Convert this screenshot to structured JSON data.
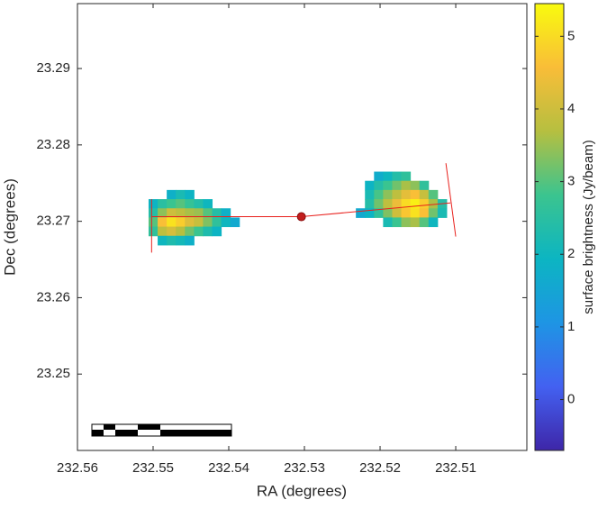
{
  "chart_data": {
    "type": "image",
    "xlabel": "RA (degrees)",
    "ylabel": "Dec (degrees)",
    "colorbar_label": "surface brightness (Jy/beam)",
    "xlim": [
      232.56,
      232.5006
    ],
    "ylim": [
      23.24,
      23.2985
    ],
    "xticks": [
      232.56,
      232.55,
      232.54,
      232.53,
      232.52,
      232.51
    ],
    "yticks": [
      23.25,
      23.26,
      23.27,
      23.28,
      23.29
    ],
    "clim": [
      -0.7,
      5.45
    ],
    "cticks": [
      0,
      1,
      2,
      3,
      4,
      5
    ],
    "colormap": [
      "#3e26a8",
      "#4361f1",
      "#1e95e4",
      "#0cb5c2",
      "#3bc48f",
      "#b6bf40",
      "#f9bd38",
      "#f9fb0e"
    ],
    "line_color": "#e8201c",
    "images": [
      {
        "ra": [
          232.55,
          232.5488,
          232.5476,
          232.5464,
          232.5452,
          232.544,
          232.5428,
          232.5416,
          232.5404,
          232.5392
        ],
        "dec": [
          23.2735,
          23.2723,
          23.2711,
          23.2699,
          23.2687,
          23.2675
        ],
        "z": [
          [
            null,
            null,
            1.8,
            2.2,
            1.9,
            null,
            null,
            null,
            null,
            null
          ],
          [
            1.9,
            2.5,
            2.8,
            3.0,
            2.7,
            2.4,
            2.0,
            null,
            null,
            null
          ],
          [
            2.4,
            3.4,
            4.0,
            3.8,
            3.6,
            3.5,
            3.0,
            2.4,
            1.8,
            null
          ],
          [
            3.0,
            4.6,
            5.1,
            4.8,
            4.2,
            3.9,
            3.3,
            2.6,
            2.0,
            1.6
          ],
          [
            2.6,
            3.8,
            4.1,
            3.7,
            3.2,
            2.8,
            2.3,
            1.9,
            null,
            null
          ],
          [
            null,
            2.0,
            2.3,
            2.1,
            1.8,
            null,
            null,
            null,
            null,
            null
          ]
        ]
      },
      {
        "ra": [
          232.5226,
          232.5214,
          232.5202,
          232.519,
          232.5178,
          232.5166,
          232.5154,
          232.5142,
          232.513,
          232.5118
        ],
        "dec": [
          23.2759,
          23.2747,
          23.2735,
          23.2723,
          23.2711,
          23.2699
        ],
        "z": [
          [
            null,
            null,
            1.7,
            2.0,
            2.4,
            2.6,
            null,
            null,
            null,
            null
          ],
          [
            null,
            1.9,
            2.4,
            2.8,
            3.2,
            3.6,
            3.4,
            2.6,
            null,
            null
          ],
          [
            null,
            2.2,
            2.9,
            3.4,
            3.8,
            4.3,
            4.6,
            3.9,
            3.0,
            null
          ],
          [
            null,
            2.4,
            3.2,
            3.8,
            4.4,
            5.0,
            5.3,
            4.8,
            3.6,
            2.4
          ],
          [
            1.6,
            1.9,
            2.6,
            3.3,
            4.0,
            4.7,
            5.1,
            4.6,
            3.2,
            2.2
          ],
          [
            null,
            null,
            null,
            2.2,
            2.8,
            3.4,
            3.6,
            3.0,
            2.0,
            null
          ]
        ]
      }
    ],
    "lines": [
      {
        "ra": [
          232.5502,
          232.5502
        ],
        "dec": [
          23.2729,
          23.2659
        ]
      },
      {
        "ra": [
          232.5502,
          232.5304,
          232.5107
        ],
        "dec": [
          23.2706,
          23.2706,
          23.2724
        ]
      },
      {
        "ra": [
          232.5113,
          232.51
        ],
        "dec": [
          23.2776,
          23.268
        ]
      }
    ],
    "marker": {
      "ra": 232.5304,
      "dec": 23.2706
    }
  }
}
